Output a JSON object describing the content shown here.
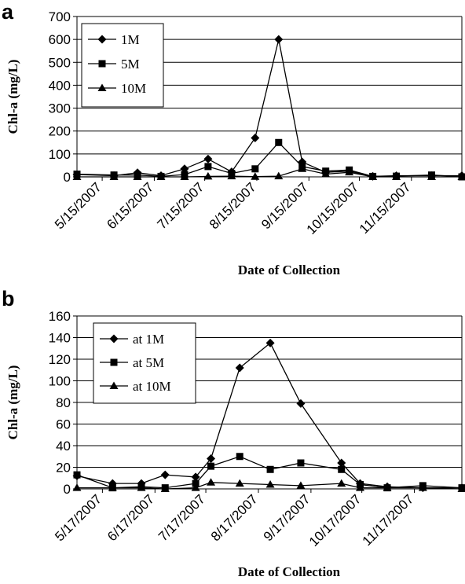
{
  "panels": [
    {
      "letter": "a"
    },
    {
      "letter": "b"
    }
  ],
  "chart_data": [
    {
      "type": "line",
      "title": "",
      "xlabel": "Date of Collection",
      "ylabel": "Chl-a (mg/L)",
      "xlim": [
        "2007-04-30",
        "2007-12-15"
      ],
      "ylim": [
        0,
        700
      ],
      "yticks": [
        0,
        100,
        200,
        300,
        400,
        500,
        600,
        700
      ],
      "xticks": [
        "5/15/2007",
        "6/15/2007",
        "7/15/2007",
        "8/15/2007",
        "9/15/2007",
        "10/15/2007",
        "11/15/2007"
      ],
      "grid": "horizontal",
      "legend": "top-left",
      "series": [
        {
          "name": "1M",
          "marker": "diamond",
          "x": [
            "2007-04-30",
            "2007-05-22",
            "2007-06-05",
            "2007-06-19",
            "2007-07-03",
            "2007-07-17",
            "2007-07-31",
            "2007-08-14",
            "2007-08-28",
            "2007-09-11",
            "2007-09-25",
            "2007-10-09",
            "2007-10-23",
            "2007-11-06",
            "2007-11-27",
            "2007-12-15"
          ],
          "values": [
            10,
            5,
            18,
            5,
            35,
            78,
            22,
            170,
            600,
            65,
            20,
            25,
            2,
            5,
            5,
            5
          ]
        },
        {
          "name": "5M",
          "marker": "square",
          "x": [
            "2007-04-30",
            "2007-05-22",
            "2007-06-05",
            "2007-06-19",
            "2007-07-03",
            "2007-07-17",
            "2007-07-31",
            "2007-08-14",
            "2007-08-28",
            "2007-09-11",
            "2007-09-25",
            "2007-10-09",
            "2007-10-23",
            "2007-11-06",
            "2007-11-27",
            "2007-12-15"
          ],
          "values": [
            12,
            8,
            8,
            2,
            10,
            45,
            15,
            35,
            150,
            45,
            25,
            30,
            2,
            3,
            8,
            0
          ]
        },
        {
          "name": "10M",
          "marker": "triangle",
          "x": [
            "2007-04-30",
            "2007-05-22",
            "2007-06-05",
            "2007-06-19",
            "2007-07-03",
            "2007-07-17",
            "2007-07-31",
            "2007-08-14",
            "2007-08-28",
            "2007-09-11",
            "2007-09-25",
            "2007-10-09",
            "2007-10-23",
            "2007-11-06",
            "2007-11-27",
            "2007-12-15"
          ],
          "values": [
            0,
            0,
            0,
            0,
            0,
            2,
            3,
            1,
            3,
            35,
            12,
            20,
            0,
            0,
            0,
            0
          ]
        }
      ]
    },
    {
      "type": "line",
      "title": "",
      "xlabel": "Date of Collection",
      "ylabel": "Chl-a (mg/L)",
      "xlim": [
        "2007-05-02",
        "2007-12-15"
      ],
      "ylim": [
        0,
        160
      ],
      "yticks": [
        0,
        20,
        40,
        60,
        80,
        100,
        120,
        140,
        160
      ],
      "xticks": [
        "5/17/2007",
        "6/17/2007",
        "7/17/2007",
        "8/17/2007",
        "9/17/2007",
        "10/17/2007",
        "11/17/2007"
      ],
      "grid": "horizontal",
      "legend": "top-left",
      "series": [
        {
          "name": "at  1M",
          "marker": "diamond",
          "x": [
            "2007-05-02",
            "2007-05-23",
            "2007-06-09",
            "2007-06-23",
            "2007-07-11",
            "2007-07-20",
            "2007-08-06",
            "2007-08-24",
            "2007-09-11",
            "2007-10-05",
            "2007-10-16",
            "2007-11-01",
            "2007-11-22",
            "2007-12-15"
          ],
          "values": [
            12,
            5,
            5,
            13,
            11,
            28,
            112,
            135,
            79,
            24,
            5,
            2,
            1,
            1
          ]
        },
        {
          "name": "at  5M",
          "marker": "square",
          "x": [
            "2007-05-02",
            "2007-05-23",
            "2007-06-09",
            "2007-06-23",
            "2007-07-11",
            "2007-07-20",
            "2007-08-06",
            "2007-08-24",
            "2007-09-11",
            "2007-10-05",
            "2007-10-16",
            "2007-11-01",
            "2007-11-22",
            "2007-12-15"
          ],
          "values": [
            13,
            1,
            2,
            1,
            5,
            21,
            30,
            18,
            24,
            18,
            4,
            1,
            3,
            1
          ]
        },
        {
          "name": "at  10M",
          "marker": "triangle",
          "x": [
            "2007-05-02",
            "2007-05-23",
            "2007-06-09",
            "2007-06-23",
            "2007-07-11",
            "2007-07-20",
            "2007-08-06",
            "2007-08-24",
            "2007-09-11",
            "2007-10-05",
            "2007-10-16",
            "2007-11-01",
            "2007-11-22",
            "2007-12-15"
          ],
          "values": [
            1,
            1,
            1,
            0,
            1,
            6,
            5,
            4,
            3,
            5,
            1,
            1,
            1,
            0
          ]
        }
      ]
    }
  ]
}
